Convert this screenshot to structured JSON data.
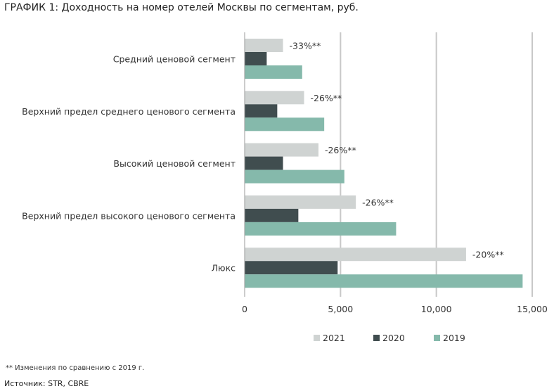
{
  "header": {
    "title": "ГРАФИК 1: Доходность на номер отелей Москвы по сегментам, руб."
  },
  "footnote": "** Изменения по сравнению с 2019 г.",
  "source": "Источник: STR, CBRE",
  "chart_data": {
    "type": "bar",
    "orientation": "horizontal",
    "title": "ГРАФИК 1: Доходность на номер отелей Москвы по сегментам, руб.",
    "categories": [
      "Средний ценовой сегмент",
      "Верхний предел среднего ценового сегмента",
      "Высокий ценовой сегмент",
      "Верхний предел высокого ценового сегмента",
      "Люкс"
    ],
    "series": [
      {
        "name": "2021",
        "color": "#cfd3d2",
        "values": [
          2000,
          3100,
          3850,
          5800,
          11550
        ]
      },
      {
        "name": "2020",
        "color": "#404d4f",
        "values": [
          1150,
          1700,
          2000,
          2800,
          4850
        ]
      },
      {
        "name": "2019",
        "color": "#85b9ab",
        "values": [
          3000,
          4150,
          5200,
          7900,
          14500
        ]
      }
    ],
    "annotations": [
      "-33%**",
      "-26%**",
      "-26%**",
      "-26%**",
      "-20%**"
    ],
    "xlim": [
      0,
      15000
    ],
    "xticks": [
      0,
      5000,
      10000,
      15000
    ],
    "xtick_labels": [
      "0",
      "5,000",
      "10,000",
      "15,000"
    ],
    "grid": true,
    "legend_position": "bottom"
  }
}
